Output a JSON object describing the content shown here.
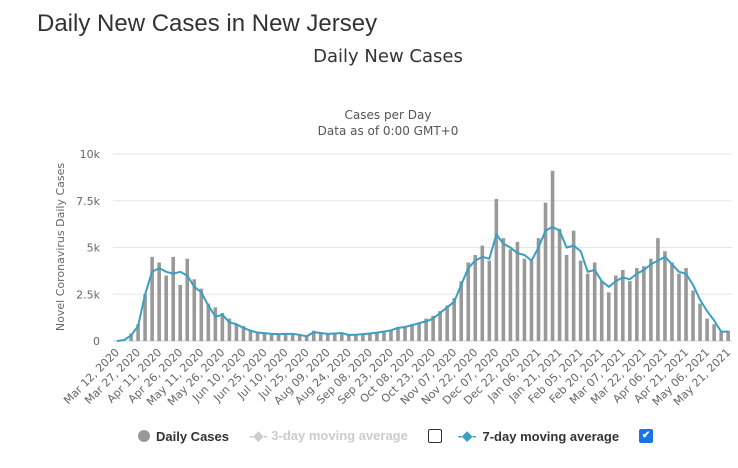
{
  "page_title": "Daily New Cases in New Jersey",
  "chart_data": {
    "type": "bar",
    "title": "Daily New Cases",
    "subtitle": [
      "Cases per Day",
      "Data as of 0:00 GMT+0"
    ],
    "ylabel": "Novel Coronavirus Daily Cases",
    "xlabel": "",
    "ylim": [
      0,
      10000
    ],
    "y_ticks": [
      "0",
      "2.5k",
      "5k",
      "7.5k",
      "10k"
    ],
    "y_tick_values": [
      0,
      2500,
      5000,
      7500,
      10000
    ],
    "x_start": "Mar 12, 2020",
    "x_step_days": 5,
    "x_tick_step_days": 15,
    "x_tick_labels": [
      "Mar 12, 2020",
      "Mar 27, 2020",
      "Apr 11, 2020",
      "Apr 26, 2020",
      "May 11, 2020",
      "May 26, 2020",
      "Jun 10, 2020",
      "Jun 25, 2020",
      "Jul 10, 2020",
      "Jul 25, 2020",
      "Aug 09, 2020",
      "Aug 24, 2020",
      "Sep 08, 2020",
      "Sep 23, 2020",
      "Oct 08, 2020",
      "Oct 23, 2020",
      "Nov 07, 2020",
      "Nov 22, 2020",
      "Dec 07, 2020",
      "Dec 22, 2020",
      "Jan 06, 2021",
      "Jan 21, 2021",
      "Feb 05, 2021",
      "Feb 20, 2021",
      "Mar 07, 2021",
      "Mar 22, 2021",
      "Apr 06, 2021",
      "Apr 21, 2021",
      "May 06, 2021",
      "May 21, 2021"
    ],
    "series": [
      {
        "name": "Daily Cases",
        "color": "#999999",
        "values": [
          20,
          90,
          400,
          900,
          2500,
          4500,
          4200,
          3500,
          4500,
          3000,
          4400,
          3300,
          2800,
          2000,
          1800,
          1500,
          1200,
          900,
          800,
          600,
          500,
          450,
          400,
          380,
          350,
          400,
          300,
          250,
          550,
          450,
          380,
          420,
          400,
          350,
          330,
          380,
          420,
          480,
          550,
          600,
          750,
          800,
          900,
          1000,
          1200,
          1350,
          1600,
          1900,
          2300,
          3200,
          4200,
          4600,
          5100,
          4300,
          7600,
          5500,
          4900,
          5300,
          4400,
          4300,
          5500,
          7400,
          9100,
          6000,
          4600,
          5900,
          4300,
          3600,
          4200,
          3200,
          2600,
          3500,
          3800,
          3200,
          3900,
          4000,
          4400,
          5500,
          4800,
          4200,
          3600,
          3900,
          2700,
          2000,
          1200,
          900,
          500,
          550
        ]
      },
      {
        "name": "3-day moving average",
        "visible": false
      },
      {
        "name": "7-day moving average",
        "color": "#3aa0c2",
        "visible": true,
        "values": [
          0,
          50,
          300,
          800,
          2500,
          3700,
          3900,
          3700,
          3600,
          3700,
          3500,
          2900,
          2600,
          1900,
          1300,
          1400,
          1000,
          900,
          700,
          550,
          450,
          420,
          380,
          370,
          380,
          380,
          330,
          250,
          470,
          430,
          380,
          400,
          430,
          320,
          330,
          370,
          400,
          450,
          500,
          570,
          700,
          750,
          850,
          950,
          1050,
          1200,
          1500,
          1800,
          2100,
          3000,
          3900,
          4300,
          4500,
          4400,
          5700,
          5200,
          5000,
          4700,
          4600,
          4300,
          5000,
          5900,
          6100,
          5900,
          5000,
          5100,
          4800,
          3700,
          3800,
          3200,
          2900,
          3200,
          3400,
          3300,
          3600,
          3800,
          4100,
          4300,
          4500,
          4100,
          3700,
          3600,
          3000,
          2200,
          1600,
          1100,
          500,
          500
        ]
      }
    ],
    "grid": true,
    "legend_placement": "bottom"
  },
  "legend": {
    "daily": "Daily Cases",
    "three_day": "3-day moving average",
    "seven_day": "7-day moving average",
    "three_day_checked": false,
    "seven_day_checked": true,
    "check_glyph": "✔"
  }
}
